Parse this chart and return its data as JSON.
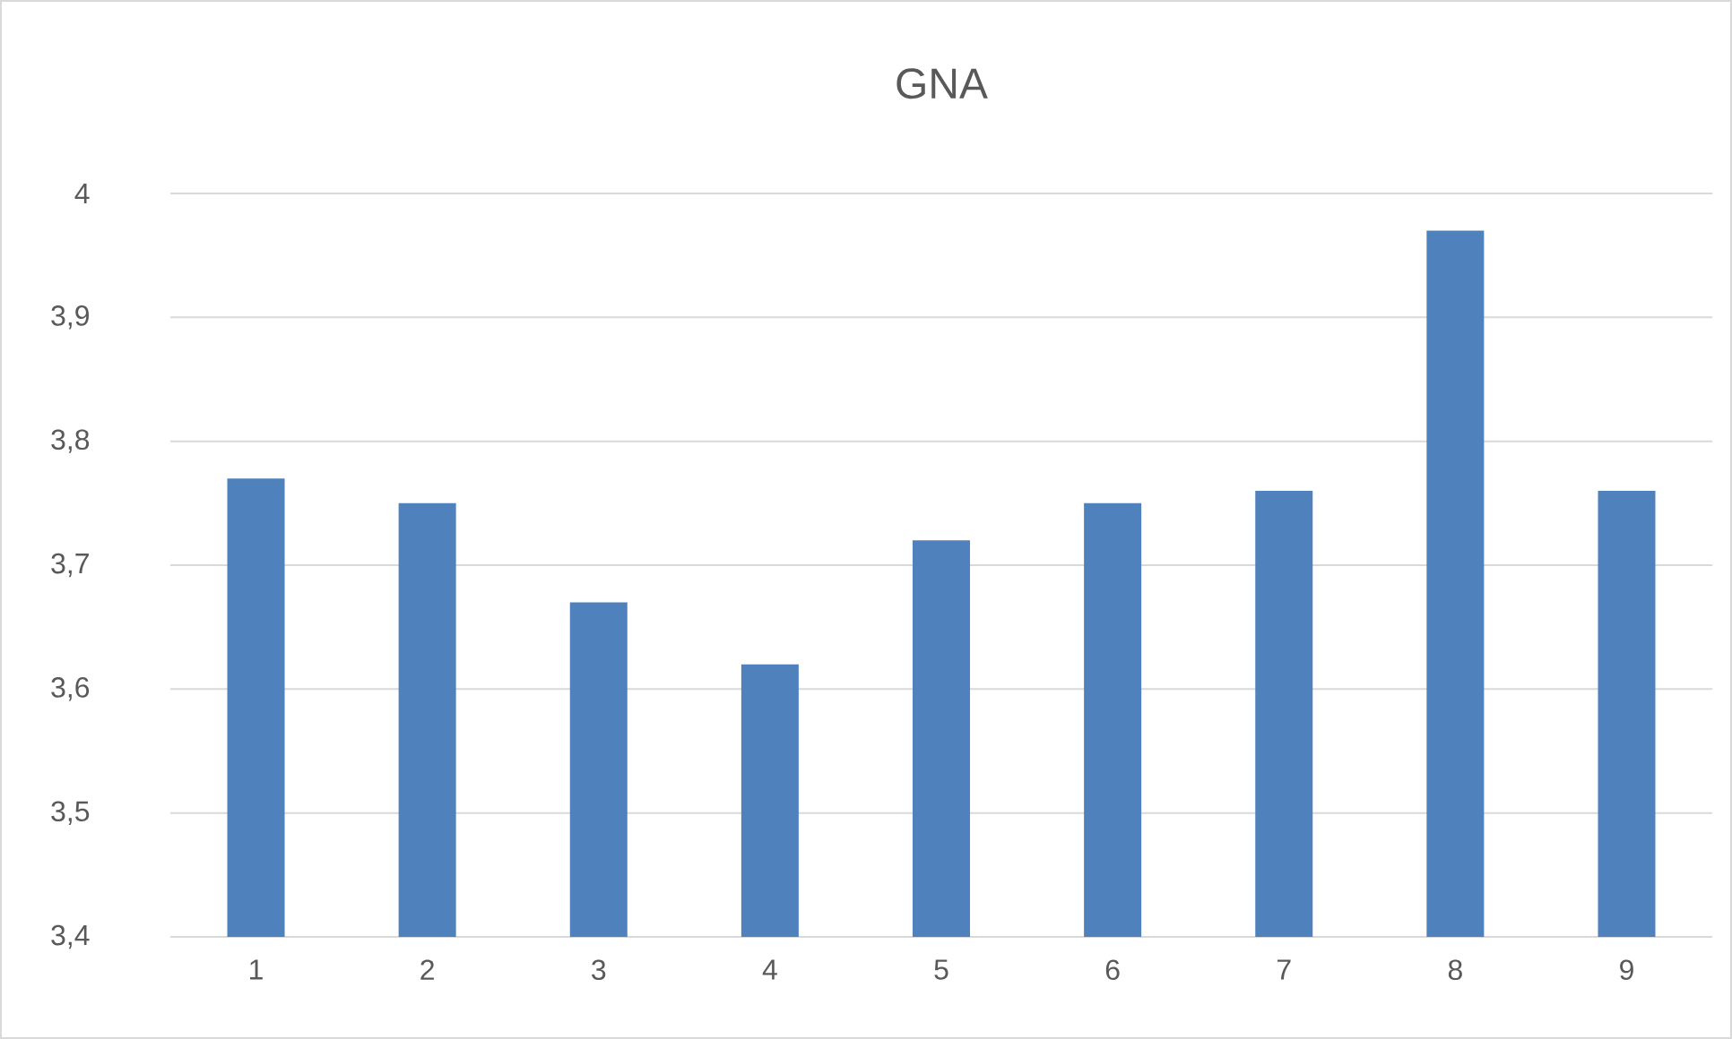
{
  "chart_data": {
    "type": "bar",
    "title": "GNA",
    "categories": [
      "1",
      "2",
      "3",
      "4",
      "5",
      "6",
      "7",
      "8",
      "9"
    ],
    "values": [
      3.77,
      3.75,
      3.67,
      3.62,
      3.72,
      3.75,
      3.76,
      3.97,
      3.76
    ],
    "color": "#4f81bd",
    "ylim": [
      3.4,
      4
    ],
    "yticks": [
      {
        "value": 3.4,
        "label": "3,4"
      },
      {
        "value": 3.5,
        "label": "3,5"
      },
      {
        "value": 3.6,
        "label": "3,6"
      },
      {
        "value": 3.7,
        "label": "3,7"
      },
      {
        "value": 3.8,
        "label": "3,8"
      },
      {
        "value": 3.9,
        "label": "3,9"
      },
      {
        "value": 4,
        "label": "4"
      }
    ],
    "grid": "y"
  }
}
